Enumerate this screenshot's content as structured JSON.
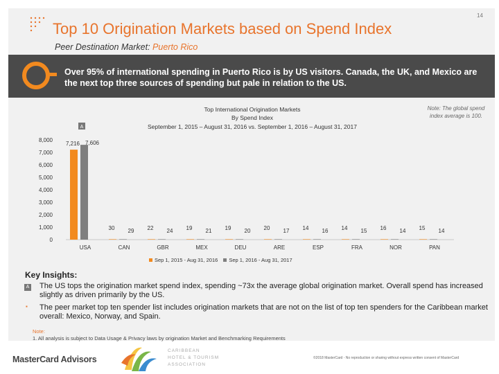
{
  "header": {
    "title": "Top 10 Origination Markets based on Spend Index",
    "page_number": "14",
    "subtitle_prefix": "Peer Destination Market:",
    "subtitle_market": "Puerto Rico"
  },
  "banner": {
    "text": "Over 95% of international spending in Puerto Rico is by US visitors. Canada, the UK, and Mexico are the next top three sources of spending but pale in relation to the US."
  },
  "chart_note": "Note: The global spend index average is 100.",
  "chart_data": {
    "type": "bar",
    "title_lines": [
      "Top International Origination Markets",
      "By Spend Index",
      "September 1, 2015 – August 31, 2016 vs. September 1, 2016 – August 31, 2017"
    ],
    "categories": [
      "USA",
      "CAN",
      "GBR",
      "MEX",
      "DEU",
      "ARE",
      "ESP",
      "FRA",
      "NOR",
      "PAN"
    ],
    "series": [
      {
        "name": "Sep 1, 2015 - Aug 31, 2016",
        "color": "#f28a1f",
        "values": [
          7216,
          30,
          22,
          19,
          19,
          20,
          14,
          14,
          16,
          15
        ]
      },
      {
        "name": "Sep 1, 2016 - Aug 31, 2017",
        "color": "#7f7f7f",
        "values": [
          7606,
          29,
          24,
          21,
          20,
          17,
          16,
          15,
          14,
          14
        ]
      }
    ],
    "data_labels": [
      [
        "7,216",
        "30",
        "22",
        "19",
        "19",
        "20",
        "14",
        "14",
        "16",
        "15"
      ],
      [
        "7,606",
        "29",
        "24",
        "21",
        "20",
        "17",
        "16",
        "15",
        "14",
        "14"
      ]
    ],
    "yticks": [
      0,
      1000,
      2000,
      3000,
      4000,
      5000,
      6000,
      7000,
      8000
    ],
    "ytick_labels": [
      "0",
      "1,000",
      "2,000",
      "3,000",
      "4,000",
      "5,000",
      "6,000",
      "7,000",
      "8,000"
    ],
    "ylim": [
      0,
      8000
    ],
    "marker_label": "A",
    "legend_position": "bottom",
    "xlabel": "",
    "ylabel": ""
  },
  "insights": {
    "title": "Key Insights:",
    "items": [
      {
        "marker": "A",
        "text": "The US tops the origination market spend index, spending ~73x the average global origination market. Overall spend has increased slightly as driven primarily by the US."
      },
      {
        "marker": "▪",
        "text": "The peer market top ten spender list includes origination markets that are not on the list of top ten spenders for the Caribbean market overall: Mexico, Norway, and Spain."
      }
    ]
  },
  "footnote": {
    "label": "Note:",
    "text": "1. All analysis is subject to Data Usage & Privacy laws by origination Market and Benchmarking Requirements"
  },
  "footer": {
    "logo_text": "MasterCard Advisors",
    "partner_lines": [
      "CARIBBEAN",
      "HOTEL & TOURISM",
      "ASSOCIATION"
    ],
    "copyright": "©2018 MasterCard - No reproduction or sharing without express written consent of MasterCard"
  }
}
